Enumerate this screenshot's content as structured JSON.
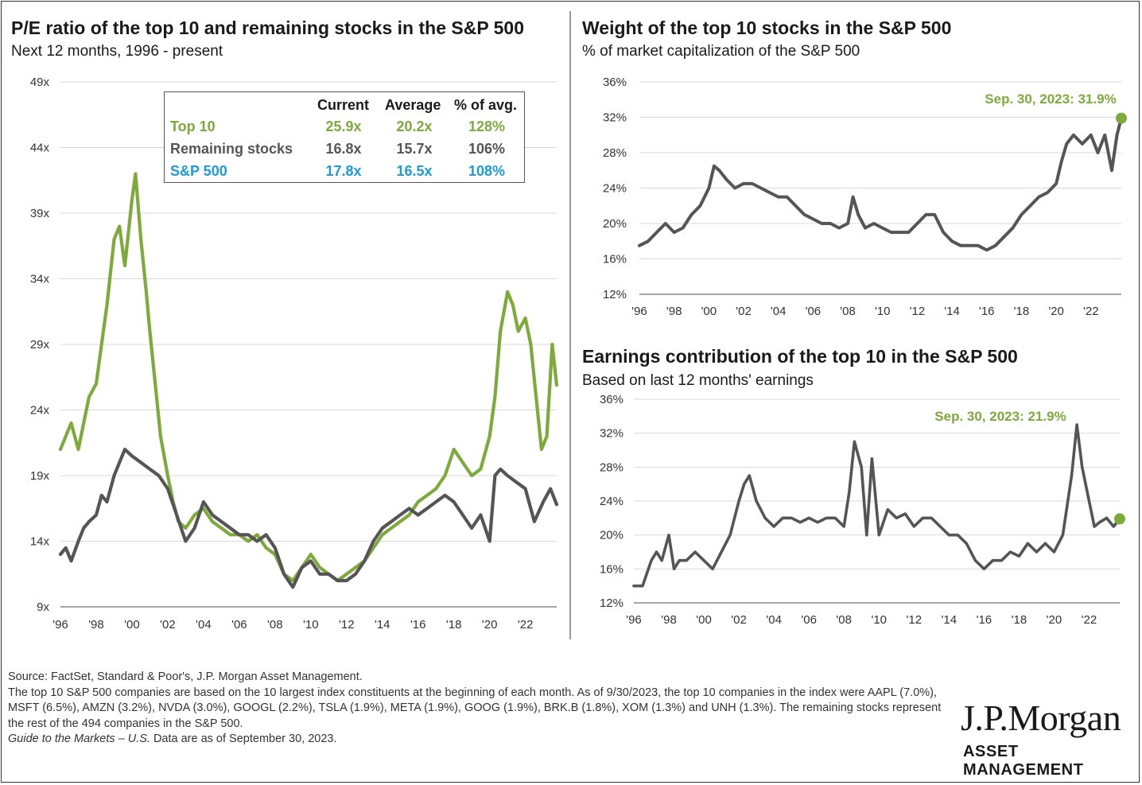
{
  "left_chart": {
    "title": "P/E ratio of the top 10 and remaining stocks in the S&P 500",
    "subtitle": "Next 12 months, 1996 - present"
  },
  "right_top_chart": {
    "title": "Weight of the top 10 stocks in the S&P 500",
    "subtitle": "% of market capitalization of the S&P 500",
    "annotation": "Sep. 30, 2023: 31.9%"
  },
  "right_bottom_chart": {
    "title": "Earnings contribution of the top 10 in the S&P 500",
    "subtitle": "Based on last 12 months' earnings",
    "annotation": "Sep. 30, 2023: 21.9%"
  },
  "table": {
    "headers": [
      "Current",
      "Average",
      "% of avg."
    ],
    "rows": [
      {
        "label": "Top 10",
        "current": "25.9x",
        "average": "20.2x",
        "pct": "128%",
        "color": "#7daa3a"
      },
      {
        "label": "Remaining stocks",
        "current": "16.8x",
        "average": "15.7x",
        "pct": "106%",
        "color": "#555555"
      },
      {
        "label": "S&P 500",
        "current": "17.8x",
        "average": "16.5x",
        "pct": "108%",
        "color": "#1a9be0"
      }
    ]
  },
  "source": {
    "line1": "Source: FactSet, Standard & Poor's, J.P. Morgan Asset Management.",
    "line2": "The top 10 S&P 500 companies are based on the 10 largest index constituents at the beginning of each month. As of 9/30/2023, the top 10 companies in the index were AAPL (7.0%), MSFT (6.5%), AMZN (3.2%), NVDA (3.0%), GOOGL (2.2%), TSLA (1.9%), META (1.9%), GOOG (1.9%), BRK.B (1.8%), XOM (1.3%) and UNH (1.3%). The remaining stocks represent the rest of the 494 companies in the S&P 500.",
    "line3_italic": "Guide to the Markets – U.S.",
    "line3_rest": " Data are as of September 30, 2023."
  },
  "logo": {
    "name": "J.P.Morgan",
    "tagline": "ASSET MANAGEMENT"
  },
  "colors": {
    "green": "#7daa3a",
    "gray": "#555555",
    "blue": "#1a9be0",
    "grid": "#d9d9d9"
  },
  "chart_data": [
    {
      "type": "line",
      "title": "P/E ratio of the top 10 and remaining stocks in the S&P 500",
      "subtitle": "Next 12 months, 1996 - present",
      "x_ticks": [
        "'96",
        "'98",
        "'00",
        "'02",
        "'04",
        "'06",
        "'08",
        "'10",
        "'12",
        "'14",
        "'16",
        "'18",
        "'20",
        "'22"
      ],
      "y_ticks": [
        "9x",
        "14x",
        "19x",
        "24x",
        "29x",
        "34x",
        "39x",
        "44x",
        "49x"
      ],
      "ylim": [
        9,
        49
      ],
      "xlim": [
        1996,
        2023.75
      ],
      "grid": true,
      "series": [
        {
          "name": "Top 10",
          "color": "#7daa3a",
          "x": [
            1996.0,
            1996.3,
            1996.6,
            1997.0,
            1997.3,
            1997.6,
            1998.0,
            1998.3,
            1998.6,
            1999.0,
            1999.3,
            1999.6,
            2000.0,
            2000.2,
            2000.5,
            2000.8,
            2001.0,
            2001.3,
            2001.6,
            2002.0,
            2002.3,
            2002.6,
            2003.0,
            2003.5,
            2004.0,
            2004.5,
            2005.0,
            2005.5,
            2006.0,
            2006.5,
            2007.0,
            2007.5,
            2008.0,
            2008.5,
            2009.0,
            2009.5,
            2010.0,
            2010.5,
            2011.0,
            2011.5,
            2012.0,
            2012.5,
            2013.0,
            2013.5,
            2014.0,
            2014.5,
            2015.0,
            2015.5,
            2016.0,
            2016.5,
            2017.0,
            2017.5,
            2018.0,
            2018.5,
            2019.0,
            2019.5,
            2020.0,
            2020.3,
            2020.6,
            2021.0,
            2021.3,
            2021.6,
            2022.0,
            2022.3,
            2022.6,
            2022.9,
            2023.2,
            2023.5,
            2023.75
          ],
          "y": [
            21,
            22,
            23,
            21,
            23,
            25,
            26,
            29,
            32,
            37,
            38,
            35,
            40,
            42,
            37,
            33,
            30,
            26,
            22,
            19,
            17,
            15.5,
            15,
            16,
            16.5,
            15.5,
            15,
            14.5,
            14.5,
            14,
            14.5,
            13.5,
            13,
            11.5,
            11,
            12,
            13,
            12,
            11.5,
            11,
            11.5,
            12,
            12.5,
            13.5,
            14.5,
            15,
            15.5,
            16,
            17,
            17.5,
            18,
            19,
            21,
            20,
            19,
            19.5,
            22,
            25,
            30,
            33,
            32,
            30,
            31,
            29,
            25,
            21,
            22,
            29,
            25.9
          ]
        },
        {
          "name": "Remaining stocks",
          "color": "#555555",
          "x": [
            1996.0,
            1996.3,
            1996.6,
            1997.0,
            1997.3,
            1997.6,
            1998.0,
            1998.3,
            1998.6,
            1999.0,
            1999.3,
            1999.6,
            2000.0,
            2000.5,
            2001.0,
            2001.5,
            2002.0,
            2002.5,
            2003.0,
            2003.5,
            2004.0,
            2004.5,
            2005.0,
            2005.5,
            2006.0,
            2006.5,
            2007.0,
            2007.5,
            2008.0,
            2008.5,
            2009.0,
            2009.5,
            2010.0,
            2010.5,
            2011.0,
            2011.5,
            2012.0,
            2012.5,
            2013.0,
            2013.5,
            2014.0,
            2014.5,
            2015.0,
            2015.5,
            2016.0,
            2016.5,
            2017.0,
            2017.5,
            2018.0,
            2018.5,
            2019.0,
            2019.5,
            2020.0,
            2020.3,
            2020.6,
            2021.0,
            2021.5,
            2022.0,
            2022.5,
            2023.0,
            2023.4,
            2023.75
          ],
          "y": [
            13,
            13.5,
            12.5,
            14,
            15,
            15.5,
            16,
            17.5,
            17,
            19,
            20,
            21,
            20.5,
            20,
            19.5,
            19,
            18,
            16,
            14,
            15,
            17,
            16,
            15.5,
            15,
            14.5,
            14.5,
            14,
            14.5,
            13.5,
            11.5,
            10.5,
            12,
            12.5,
            11.5,
            11.5,
            11,
            11,
            11.5,
            12.5,
            14,
            15,
            15.5,
            16,
            16.5,
            16,
            16.5,
            17,
            17.5,
            17,
            16,
            15,
            16,
            14,
            19,
            19.5,
            19,
            18.5,
            18,
            15.5,
            17,
            18,
            16.8
          ]
        }
      ]
    },
    {
      "type": "line",
      "title": "Weight of the top 10 stocks in the S&P 500",
      "subtitle": "% of market capitalization of the S&P 500",
      "x_ticks": [
        "'96",
        "'98",
        "'00",
        "'02",
        "'04",
        "'06",
        "'08",
        "'10",
        "'12",
        "'14",
        "'16",
        "'18",
        "'20",
        "'22"
      ],
      "y_ticks": [
        "12%",
        "16%",
        "20%",
        "24%",
        "28%",
        "32%",
        "36%"
      ],
      "ylim": [
        12,
        36
      ],
      "xlim": [
        1996,
        2023.75
      ],
      "grid": true,
      "annotation": "Sep. 30, 2023: 31.9%",
      "series": [
        {
          "name": "Top 10 weight",
          "color": "#555555",
          "x": [
            1996.0,
            1996.5,
            1997.0,
            1997.5,
            1998.0,
            1998.5,
            1999.0,
            1999.5,
            2000.0,
            2000.3,
            2000.6,
            2001.0,
            2001.5,
            2002.0,
            2002.5,
            2003.0,
            2003.5,
            2004.0,
            2004.5,
            2005.0,
            2005.5,
            2006.0,
            2006.5,
            2007.0,
            2007.5,
            2008.0,
            2008.3,
            2008.6,
            2009.0,
            2009.5,
            2010.0,
            2010.5,
            2011.0,
            2011.5,
            2012.0,
            2012.5,
            2013.0,
            2013.5,
            2014.0,
            2014.5,
            2015.0,
            2015.5,
            2016.0,
            2016.5,
            2017.0,
            2017.5,
            2018.0,
            2018.5,
            2019.0,
            2019.5,
            2020.0,
            2020.3,
            2020.6,
            2021.0,
            2021.5,
            2022.0,
            2022.4,
            2022.8,
            2023.2,
            2023.5,
            2023.75
          ],
          "y": [
            17.5,
            18,
            19,
            20,
            19,
            19.5,
            21,
            22,
            24,
            26.5,
            26,
            25,
            24,
            24.5,
            24.5,
            24,
            23.5,
            23,
            23,
            22,
            21,
            20.5,
            20,
            20,
            19.5,
            20,
            23,
            21,
            19.5,
            20,
            19.5,
            19,
            19,
            19,
            20,
            21,
            21,
            19,
            18,
            17.5,
            17.5,
            17.5,
            17,
            17.5,
            18.5,
            19.5,
            21,
            22,
            23,
            23.5,
            24.5,
            27,
            29,
            30,
            29,
            30,
            28,
            30,
            26,
            30,
            31.9
          ]
        }
      ]
    },
    {
      "type": "line",
      "title": "Earnings contribution of the top 10 in the S&P 500",
      "subtitle": "Based on last 12 months' earnings",
      "x_ticks": [
        "'96",
        "'98",
        "'00",
        "'02",
        "'04",
        "'06",
        "'08",
        "'10",
        "'12",
        "'14",
        "'16",
        "'18",
        "'20",
        "'22"
      ],
      "y_ticks": [
        "12%",
        "16%",
        "20%",
        "24%",
        "28%",
        "32%",
        "36%"
      ],
      "ylim": [
        12,
        36
      ],
      "xlim": [
        1996,
        2023.75
      ],
      "grid": true,
      "annotation": "Sep. 30, 2023: 21.9%",
      "series": [
        {
          "name": "Top 10 earnings contribution",
          "color": "#555555",
          "x": [
            1996.0,
            1996.5,
            1997.0,
            1997.3,
            1997.6,
            1998.0,
            1998.3,
            1998.6,
            1999.0,
            1999.5,
            2000.0,
            2000.5,
            2001.0,
            2001.5,
            2002.0,
            2002.3,
            2002.6,
            2003.0,
            2003.5,
            2004.0,
            2004.5,
            2005.0,
            2005.5,
            2006.0,
            2006.5,
            2007.0,
            2007.5,
            2008.0,
            2008.3,
            2008.6,
            2009.0,
            2009.3,
            2009.6,
            2010.0,
            2010.5,
            2011.0,
            2011.5,
            2012.0,
            2012.5,
            2013.0,
            2013.5,
            2014.0,
            2014.5,
            2015.0,
            2015.5,
            2016.0,
            2016.5,
            2017.0,
            2017.5,
            2018.0,
            2018.5,
            2019.0,
            2019.5,
            2020.0,
            2020.5,
            2021.0,
            2021.3,
            2021.6,
            2022.0,
            2022.3,
            2022.6,
            2023.0,
            2023.4,
            2023.75
          ],
          "y": [
            14,
            14,
            17,
            18,
            17,
            20,
            16,
            17,
            17,
            18,
            17,
            16,
            18,
            20,
            24,
            26,
            27,
            24,
            22,
            21,
            22,
            22,
            21.5,
            22,
            21.5,
            22,
            22,
            21,
            25,
            31,
            28,
            20,
            29,
            20,
            23,
            22,
            22.5,
            21,
            22,
            22,
            21,
            20,
            20,
            19,
            17,
            16,
            17,
            17,
            18,
            17.5,
            19,
            18,
            19,
            18,
            20,
            27,
            33,
            28,
            24,
            21,
            21.5,
            22,
            21,
            21.9
          ]
        }
      ]
    }
  ]
}
